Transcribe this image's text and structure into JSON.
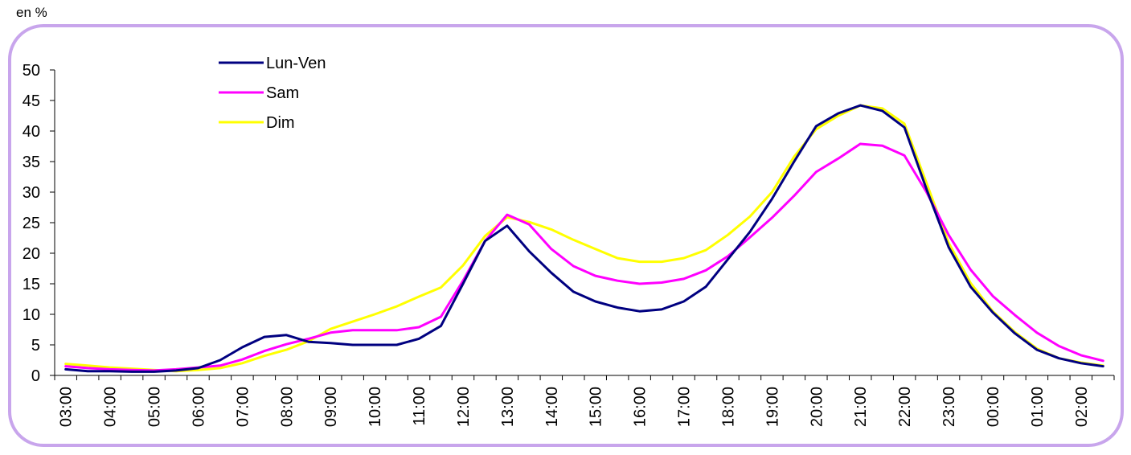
{
  "unit_label": "en %",
  "chart_data": {
    "type": "line",
    "ylim": [
      0,
      50
    ],
    "yticks": [
      0,
      5,
      10,
      15,
      20,
      25,
      30,
      35,
      40,
      45,
      50
    ],
    "x": [
      "03:00",
      "03:30",
      "04:00",
      "04:30",
      "05:00",
      "05:30",
      "06:00",
      "06:30",
      "07:00",
      "07:30",
      "08:00",
      "08:30",
      "09:00",
      "09:30",
      "10:00",
      "10:30",
      "11:00",
      "11:30",
      "12:00",
      "12:30",
      "13:00",
      "13:30",
      "14:00",
      "14:30",
      "15:00",
      "15:30",
      "16:00",
      "16:30",
      "17:00",
      "17:30",
      "18:00",
      "18:30",
      "19:00",
      "19:30",
      "20:00",
      "20:30",
      "21:00",
      "21:30",
      "22:00",
      "22:30",
      "23:00",
      "23:30",
      "00:00",
      "00:30",
      "01:00",
      "01:30",
      "02:00",
      "02:30"
    ],
    "x_tick_labels": [
      "03:00",
      "04:00",
      "05:00",
      "06:00",
      "07:00",
      "08:00",
      "09:00",
      "10:00",
      "11:00",
      "12:00",
      "13:00",
      "14:00",
      "15:00",
      "16:00",
      "17:00",
      "18:00",
      "19:00",
      "20:00",
      "21:00",
      "22:00",
      "23:00",
      "00:00",
      "01:00",
      "02:00"
    ],
    "legend_position": "top-left",
    "grid": false,
    "series": [
      {
        "name": "Lun-Ven",
        "color": "#000080",
        "values": [
          1.0,
          0.7,
          0.7,
          0.6,
          0.6,
          0.8,
          1.2,
          2.5,
          4.6,
          6.3,
          6.6,
          5.5,
          5.3,
          5.0,
          5.0,
          5.0,
          6.0,
          8.1,
          15.0,
          22.0,
          24.5,
          20.3,
          16.8,
          13.7,
          12.1,
          11.1,
          10.5,
          10.8,
          12.1,
          14.5,
          19.0,
          23.5,
          28.9,
          35.0,
          40.8,
          42.9,
          44.2,
          43.3,
          40.6,
          30.5,
          21.0,
          14.5,
          10.3,
          6.9,
          4.2,
          2.8,
          2.0,
          1.5
        ]
      },
      {
        "name": "Sam",
        "color": "#ff00ff",
        "values": [
          1.5,
          1.2,
          1.0,
          0.9,
          0.8,
          1.0,
          1.3,
          1.6,
          2.6,
          4.0,
          5.1,
          6.0,
          7.0,
          7.4,
          7.4,
          7.4,
          7.9,
          9.6,
          15.5,
          22.0,
          26.3,
          24.7,
          20.7,
          17.9,
          16.3,
          15.5,
          15.0,
          15.2,
          15.8,
          17.2,
          19.5,
          22.6,
          25.8,
          29.4,
          33.3,
          35.5,
          37.9,
          37.6,
          36.0,
          30.0,
          23.0,
          17.3,
          13.0,
          9.9,
          7.0,
          4.8,
          3.3,
          2.4
        ]
      },
      {
        "name": "Dim",
        "color": "#ffff00",
        "values": [
          1.9,
          1.6,
          1.3,
          1.1,
          0.9,
          0.7,
          0.9,
          1.2,
          2.0,
          3.2,
          4.2,
          5.6,
          7.6,
          8.8,
          10.0,
          11.3,
          12.9,
          14.4,
          18.0,
          22.8,
          25.9,
          25.1,
          23.9,
          22.2,
          20.7,
          19.2,
          18.6,
          18.6,
          19.2,
          20.5,
          23.0,
          26.0,
          30.0,
          35.8,
          40.3,
          42.5,
          44.2,
          43.7,
          41.2,
          31.5,
          21.7,
          15.1,
          10.5,
          7.1,
          4.4,
          2.8,
          2.1,
          1.6
        ]
      }
    ]
  }
}
